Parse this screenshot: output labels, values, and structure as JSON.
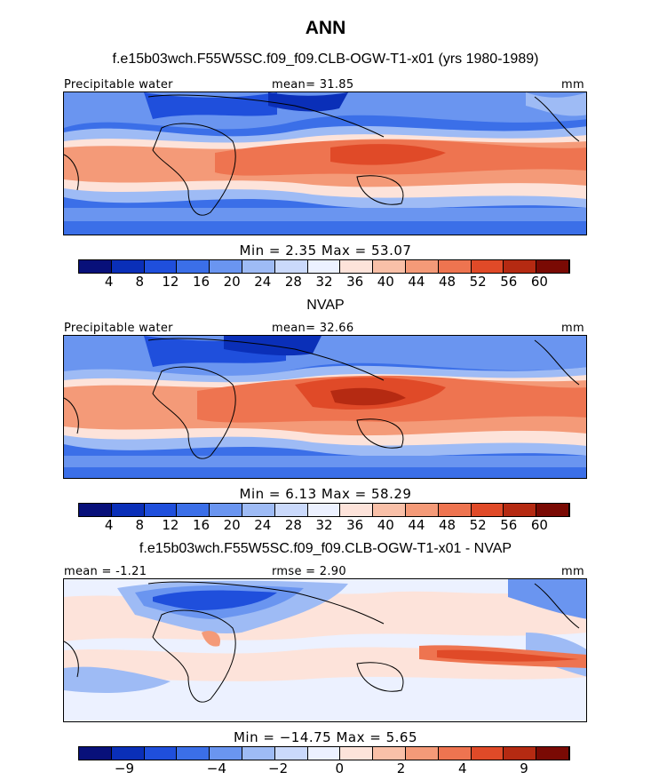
{
  "title": "ANN",
  "panels": [
    {
      "subtitle": "f.e15b03wch.F55W5SC.f09_f09.CLB-OGW-T1-x01 (yrs 1980-1989)",
      "left_label": "Precipitable water",
      "center_label": "mean=  31.85",
      "unit": "mm",
      "stats": "Min =    2.35  Max =   53.07",
      "colorbar": "abs",
      "ticks": [
        "4",
        "8",
        "12",
        "16",
        "20",
        "24",
        "28",
        "32",
        "36",
        "40",
        "44",
        "48",
        "52",
        "56",
        "60"
      ]
    },
    {
      "subtitle": "NVAP",
      "left_label": "Precipitable water",
      "center_label": "mean=  32.66",
      "unit": "mm",
      "stats": "Min =    6.13  Max =   58.29",
      "colorbar": "abs",
      "ticks": [
        "4",
        "8",
        "12",
        "16",
        "20",
        "24",
        "28",
        "32",
        "36",
        "40",
        "44",
        "48",
        "52",
        "56",
        "60"
      ]
    },
    {
      "subtitle": "f.e15b03wch.F55W5SC.f09_f09.CLB-OGW-T1-x01 - NVAP",
      "left_label": "mean =  -1.21",
      "center_label": "rmse =    2.90",
      "unit": "mm",
      "stats": "Min = −14.75  Max =    5.65",
      "colorbar": "diff",
      "ticks": [
        "−9",
        "−4",
        "−2",
        "0",
        "2",
        "4",
        "9"
      ]
    }
  ],
  "colors": {
    "abs": [
      "#08107a",
      "#0a2fb8",
      "#1f4fdc",
      "#3b6fe8",
      "#6a95f0",
      "#9ebbf5",
      "#cad9fb",
      "#ecf1ff",
      "#fde3da",
      "#f9c0a8",
      "#f49a78",
      "#ee7450",
      "#e04a28",
      "#b52a12",
      "#7a0a04"
    ],
    "diff": [
      "#08107a",
      "#0a2fb8",
      "#1f4fdc",
      "#3b6fe8",
      "#6a95f0",
      "#9ebbf5",
      "#cad9fb",
      "#ecf1ff",
      "#fde3da",
      "#f9c0a8",
      "#f49a78",
      "#ee7450",
      "#e04a28",
      "#b52a12",
      "#7a0a04"
    ]
  }
}
